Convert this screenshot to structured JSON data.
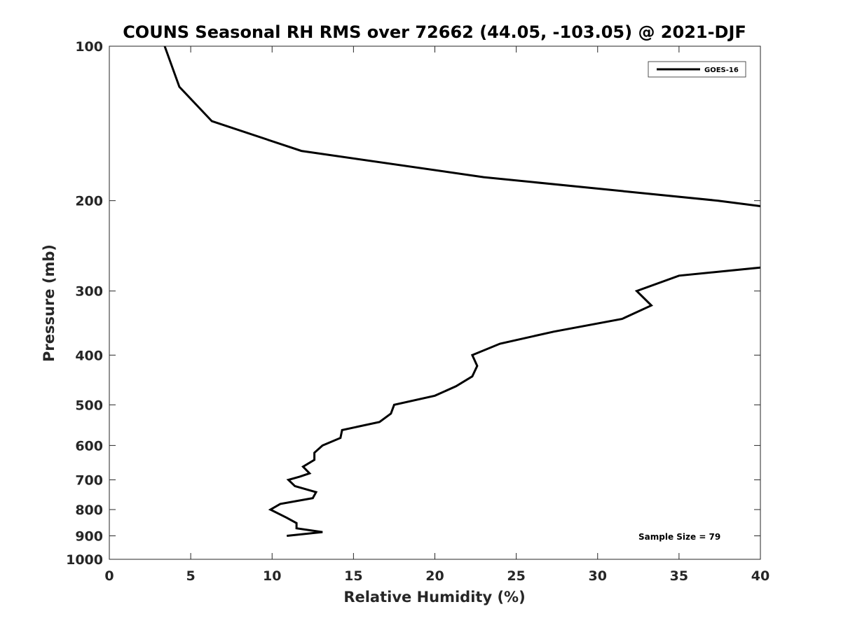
{
  "chart_data": {
    "type": "line",
    "title": "COUNS Seasonal RH RMS over 72662 (44.05, -103.05) @ 2021-DJF",
    "xlabel": "Relative Humidity (%)",
    "ylabel": "Pressure (mb)",
    "xlim": [
      0,
      40
    ],
    "ylim": [
      1000,
      100
    ],
    "yscale": "log",
    "y_reversed": true,
    "x_ticks": [
      0,
      5,
      10,
      15,
      20,
      25,
      30,
      35,
      40
    ],
    "y_ticks": [
      100,
      200,
      300,
      400,
      500,
      600,
      700,
      800,
      900,
      1000
    ],
    "grid": false,
    "legend_placement": "top-right",
    "annotation": "Sample Size = 79",
    "series": [
      {
        "name": "GOES-16",
        "color": "#000000",
        "segments": [
          [
            {
              "x": 3.4,
              "y": 100
            },
            {
              "x": 4.3,
              "y": 120
            },
            {
              "x": 6.3,
              "y": 140
            },
            {
              "x": 11.8,
              "y": 160
            },
            {
              "x": 23.0,
              "y": 180
            },
            {
              "x": 37.4,
              "y": 200
            },
            {
              "x": 40.0,
              "y": 205
            }
          ],
          [
            {
              "x": 40.0,
              "y": 270
            },
            {
              "x": 35.0,
              "y": 280
            },
            {
              "x": 32.4,
              "y": 300
            },
            {
              "x": 33.3,
              "y": 320
            },
            {
              "x": 31.5,
              "y": 340
            },
            {
              "x": 27.3,
              "y": 360
            },
            {
              "x": 24.0,
              "y": 380
            },
            {
              "x": 22.3,
              "y": 400
            },
            {
              "x": 22.6,
              "y": 420
            },
            {
              "x": 22.3,
              "y": 440
            },
            {
              "x": 21.3,
              "y": 460
            },
            {
              "x": 20.0,
              "y": 480
            },
            {
              "x": 17.5,
              "y": 500
            },
            {
              "x": 17.3,
              "y": 520
            },
            {
              "x": 16.6,
              "y": 540
            },
            {
              "x": 14.3,
              "y": 560
            },
            {
              "x": 14.2,
              "y": 580
            },
            {
              "x": 13.1,
              "y": 600
            },
            {
              "x": 12.6,
              "y": 620
            },
            {
              "x": 12.6,
              "y": 640
            },
            {
              "x": 11.9,
              "y": 660
            },
            {
              "x": 12.3,
              "y": 680
            },
            {
              "x": 11.7,
              "y": 690
            },
            {
              "x": 11.0,
              "y": 700
            },
            {
              "x": 11.4,
              "y": 720
            },
            {
              "x": 12.7,
              "y": 740
            },
            {
              "x": 12.5,
              "y": 760
            },
            {
              "x": 10.5,
              "y": 780
            },
            {
              "x": 9.9,
              "y": 800
            },
            {
              "x": 10.9,
              "y": 830
            },
            {
              "x": 11.5,
              "y": 850
            },
            {
              "x": 11.5,
              "y": 870
            },
            {
              "x": 13.1,
              "y": 885
            },
            {
              "x": 10.9,
              "y": 900
            }
          ]
        ]
      }
    ]
  }
}
